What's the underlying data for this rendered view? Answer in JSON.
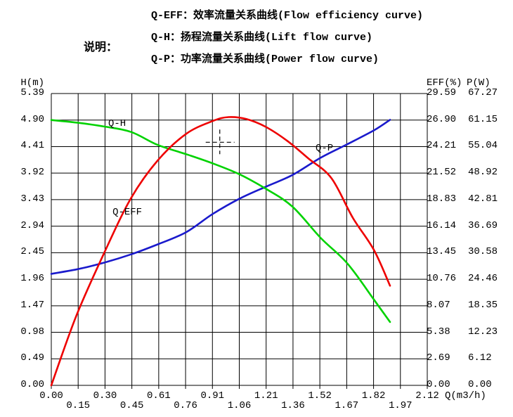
{
  "header": {
    "note_label": "说明：",
    "legend": [
      {
        "text": "Q-EFF：效率流量关系曲线(Flow efficiency curve)"
      },
      {
        "text": "Q-H：扬程流量关系曲线(Lift flow curve)"
      },
      {
        "text": "Q-P：功率流量关系曲线(Power flow curve)"
      }
    ]
  },
  "colors": {
    "background": "#ffffff",
    "grid": "#000000",
    "text": "#000000"
  },
  "chart_data": {
    "type": "line",
    "axes": {
      "x": {
        "label": "Q(m3/h)",
        "min": 0,
        "max": 2.12,
        "ticks": [
          "0.00",
          "0.15",
          "0.30",
          "0.45",
          "0.61",
          "0.76",
          "0.91",
          "1.06",
          "1.21",
          "1.36",
          "1.52",
          "1.67",
          "1.82",
          "1.97",
          "2.12"
        ]
      },
      "y_left": {
        "label": "H(m)",
        "min": 0,
        "max": 5.39,
        "ticks": [
          "5.39",
          "4.90",
          "4.41",
          "3.92",
          "3.43",
          "2.94",
          "2.45",
          "1.96",
          "1.47",
          "0.98",
          "0.49",
          "0.00"
        ]
      },
      "y_right_eff": {
        "label": "EFF(%)",
        "min": 0,
        "max": 29.59,
        "ticks": [
          "29.59",
          "26.90",
          "24.21",
          "21.52",
          "18.83",
          "16.14",
          "13.45",
          "10.76",
          "8.07",
          "5.38",
          "2.69",
          "0.00"
        ]
      },
      "y_right_p": {
        "label": "P(W)",
        "min": 0,
        "max": 67.27,
        "ticks": [
          "67.27",
          "61.15",
          "55.04",
          "48.92",
          "42.81",
          "36.69",
          "30.58",
          "24.46",
          "18.35",
          "12.23",
          "6.12",
          "0.00"
        ]
      }
    },
    "grid": true,
    "series": [
      {
        "name": "Q-H",
        "description": "扬程流量关系曲线(Lift flow curve)",
        "axis": "H",
        "color": "#00d200",
        "label_at": {
          "q": 0.321,
          "v": 4.82
        },
        "points": [
          [
            0.0,
            4.9
          ],
          [
            0.15,
            4.85
          ],
          [
            0.3,
            4.78
          ],
          [
            0.45,
            4.68
          ],
          [
            0.6,
            4.44
          ],
          [
            0.76,
            4.27
          ],
          [
            0.91,
            4.1
          ],
          [
            1.06,
            3.9
          ],
          [
            1.21,
            3.63
          ],
          [
            1.36,
            3.3
          ],
          [
            1.52,
            2.72
          ],
          [
            1.67,
            2.25
          ],
          [
            1.82,
            1.58
          ],
          [
            1.91,
            1.17
          ]
        ]
      },
      {
        "name": "Q-EFF",
        "description": "效率流量关系曲线(Flow efficiency curve)",
        "axis": "EFF",
        "color": "#ee0000",
        "label_at": {
          "q": 0.345,
          "v": 17.5
        },
        "points": [
          [
            0.0,
            0.0
          ],
          [
            0.14,
            7.0
          ],
          [
            0.3,
            13.5
          ],
          [
            0.45,
            19.0
          ],
          [
            0.6,
            22.8
          ],
          [
            0.76,
            25.5
          ],
          [
            0.91,
            26.8
          ],
          [
            1.0,
            27.2
          ],
          [
            1.1,
            27.0
          ],
          [
            1.21,
            26.2
          ],
          [
            1.33,
            24.8
          ],
          [
            1.45,
            23.0
          ],
          [
            1.58,
            21.0
          ],
          [
            1.7,
            17.0
          ],
          [
            1.82,
            13.7
          ],
          [
            1.91,
            10.1
          ]
        ]
      },
      {
        "name": "Q-P",
        "description": "功率流量关系曲线(Power flow curve)",
        "axis": "P",
        "color": "#1a1acc",
        "label_at": {
          "q": 1.49,
          "v": 54.5
        },
        "points": [
          [
            0.0,
            25.7
          ],
          [
            0.15,
            26.8
          ],
          [
            0.3,
            28.3
          ],
          [
            0.45,
            30.2
          ],
          [
            0.6,
            32.5
          ],
          [
            0.76,
            35.3
          ],
          [
            0.91,
            39.5
          ],
          [
            1.06,
            43.0
          ],
          [
            1.21,
            45.8
          ],
          [
            1.36,
            48.5
          ],
          [
            1.52,
            52.5
          ],
          [
            1.67,
            55.6
          ],
          [
            1.82,
            58.8
          ],
          [
            1.91,
            61.2
          ]
        ]
      }
    ],
    "marker": {
      "q": 0.95,
      "h": 4.49
    }
  }
}
